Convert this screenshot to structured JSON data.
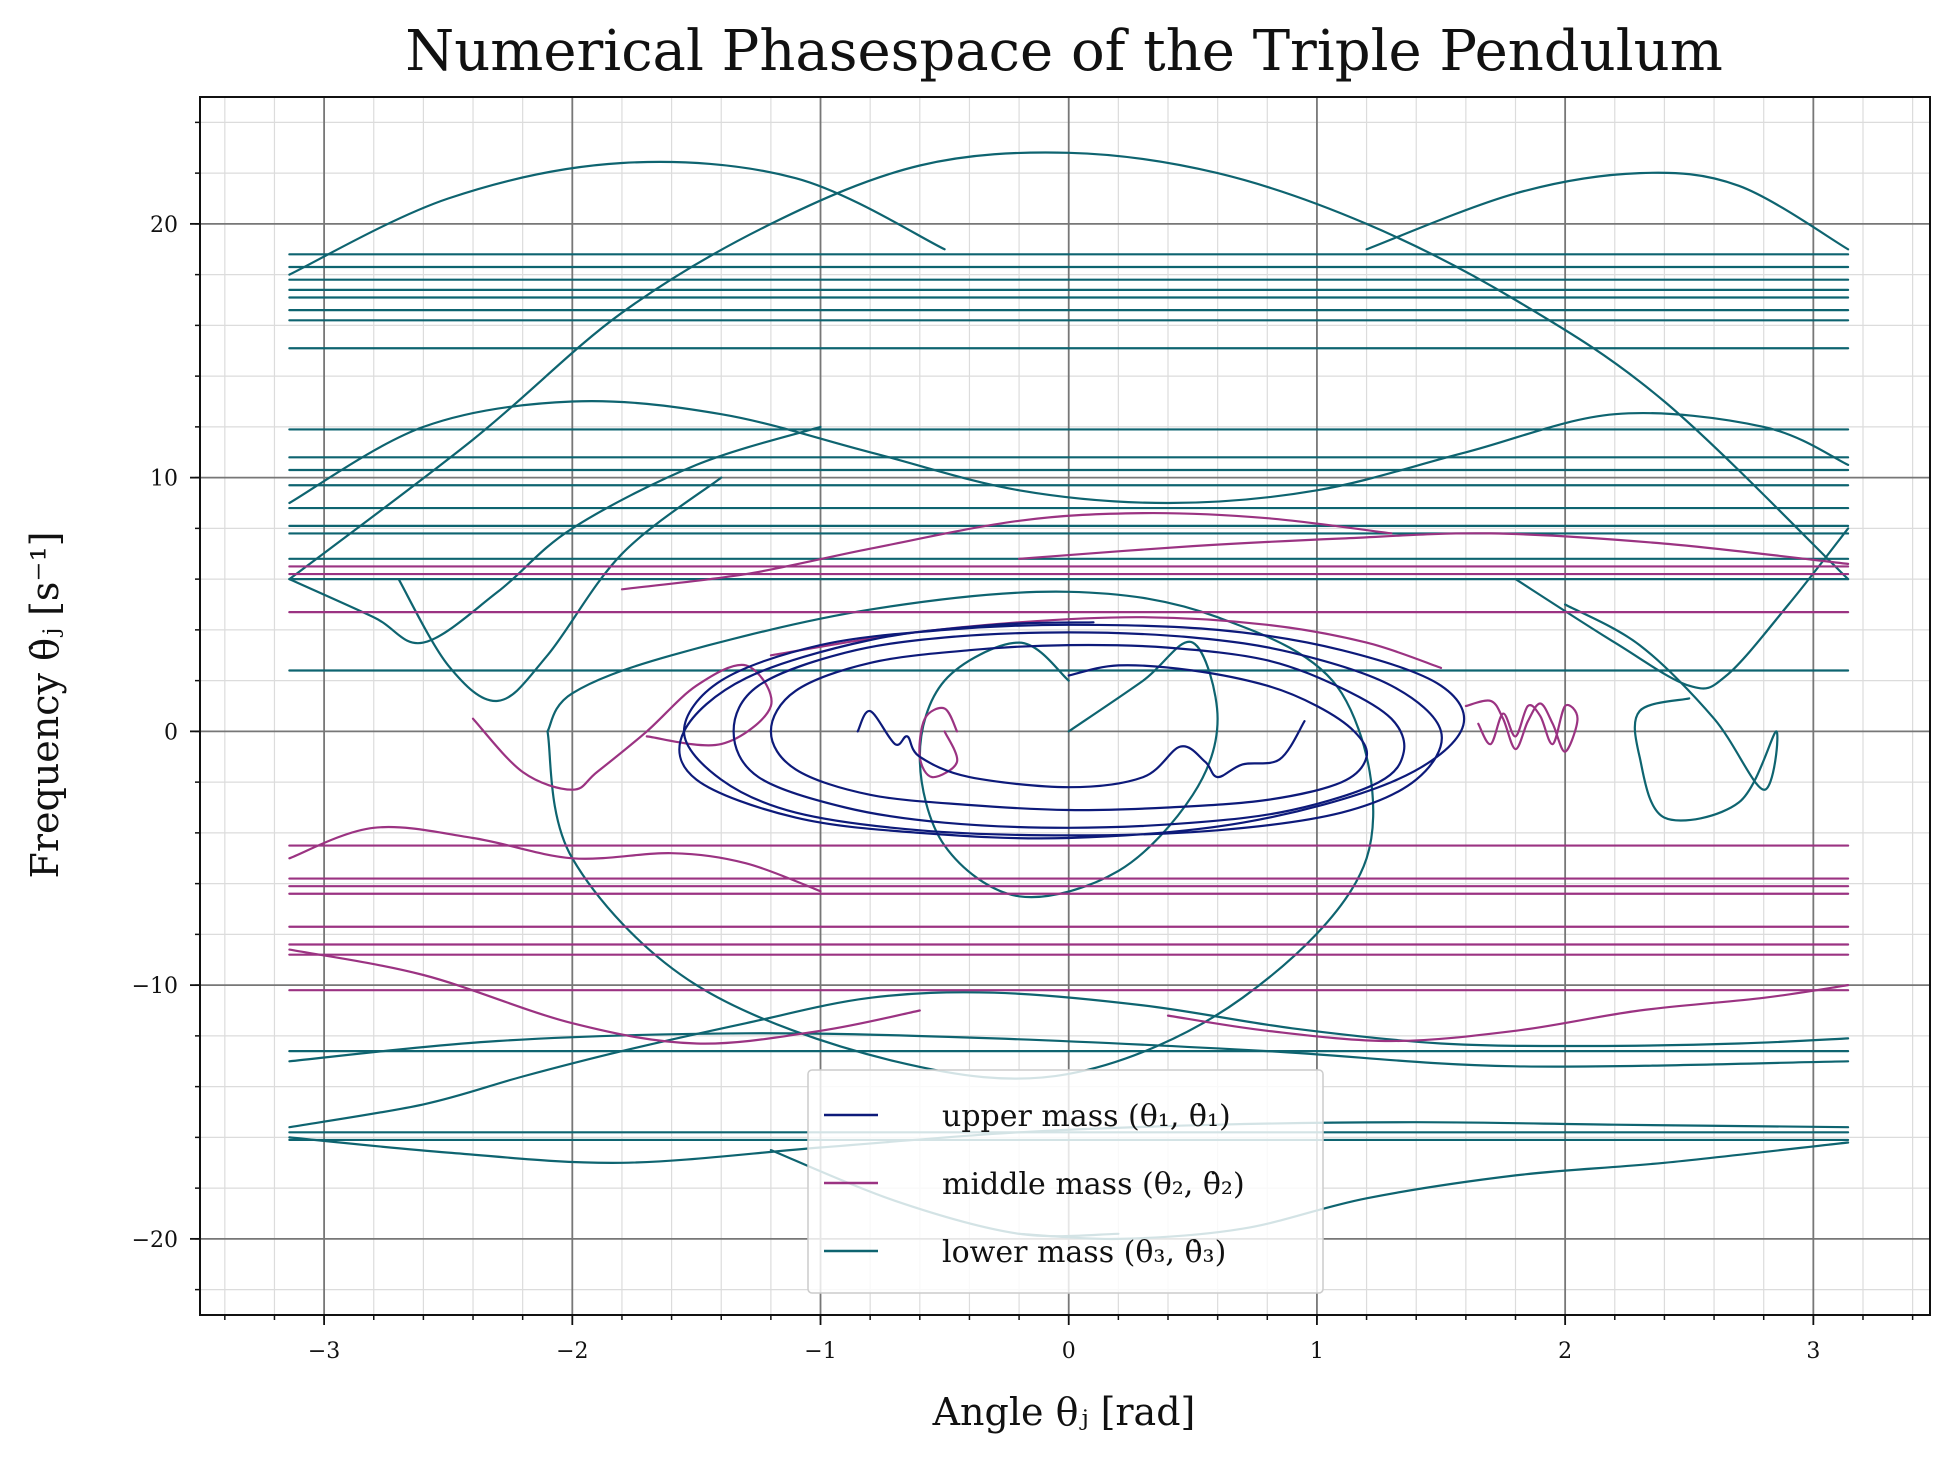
{
  "chart_data": {
    "type": "line",
    "title": "Numerical Phasespace of the Triple Pendulum",
    "xlabel": "Angle θⱼ [rad]",
    "ylabel": "Frequency θ̇ⱼ [s⁻¹]",
    "xlim": [
      -3.5,
      3.47
    ],
    "ylim": [
      -23,
      25
    ],
    "xticks": [
      -3,
      -2,
      -1,
      0,
      1,
      2,
      3
    ],
    "xtick_labels": [
      "−3",
      "−2",
      "−1",
      "0",
      "1",
      "2",
      "3"
    ],
    "yticks": [
      -20,
      -10,
      0,
      10,
      20
    ],
    "ytick_labels": [
      "−20",
      "−10",
      "0",
      "10",
      "20"
    ],
    "grid": true,
    "legend_position": "bottom-center",
    "series": [
      {
        "name": "upper mass (θ₁, θ̇₁)",
        "color": "#0d1a7a",
        "segments": [
          {
            "x": [
              0.0,
              0.2,
              0.5,
              0.8,
              1.0,
              1.15,
              1.2,
              1.1,
              0.8,
              0.4,
              0.0,
              -0.4,
              -0.8,
              -1.1,
              -1.2,
              -1.1,
              -0.8,
              -0.4,
              0.0,
              0.4,
              0.8,
              1.1,
              1.3,
              1.35,
              1.25,
              0.9,
              0.5,
              0.0,
              -0.5,
              -0.9,
              -1.25,
              -1.35,
              -1.25,
              -0.9,
              -0.5,
              0.0,
              0.5,
              0.9,
              1.3,
              1.5,
              1.4,
              1.1,
              0.6,
              0.0,
              -0.6,
              -1.1,
              -1.4,
              -1.55,
              -1.4,
              -1.0,
              -0.5,
              0.0,
              0.6,
              1.1,
              1.5,
              1.58,
              1.3,
              0.7,
              0.0,
              -0.6,
              -1.1,
              -1.5,
              -1.55,
              -1.3,
              -0.8,
              -0.3,
              0.1
            ],
            "y": [
              2.2,
              2.6,
              2.4,
              1.8,
              1.0,
              0.0,
              -1.0,
              -2.0,
              -2.7,
              -3.0,
              -3.1,
              -2.9,
              -2.5,
              -1.5,
              0.0,
              1.6,
              2.7,
              3.2,
              3.4,
              3.3,
              2.8,
              1.7,
              0.5,
              -0.8,
              -2.0,
              -3.1,
              -3.6,
              -3.8,
              -3.6,
              -3.0,
              -1.8,
              0.0,
              1.8,
              3.1,
              3.7,
              3.9,
              3.7,
              3.1,
              1.8,
              0.0,
              -1.9,
              -3.2,
              -3.9,
              -4.1,
              -3.9,
              -3.2,
              -1.9,
              0.0,
              2.0,
              3.4,
              4.0,
              4.2,
              4.0,
              3.2,
              1.8,
              0.0,
              -2.0,
              -3.6,
              -4.2,
              -4.0,
              -3.4,
              -1.9,
              0.0,
              2.1,
              3.6,
              4.2,
              4.3
            ]
          },
          {
            "x": [
              -0.85,
              -0.8,
              -0.7,
              -0.65,
              -0.6,
              -0.4,
              0.0,
              0.3,
              0.45,
              0.55,
              0.6,
              0.7,
              0.85,
              0.95
            ],
            "y": [
              0.0,
              0.8,
              -0.5,
              -0.2,
              -1.0,
              -1.8,
              -2.2,
              -1.8,
              -0.6,
              -1.2,
              -1.8,
              -1.3,
              -1.1,
              0.4
            ]
          }
        ]
      },
      {
        "name": "middle mass (θ₂, θ̇₂)",
        "color": "#9b3382",
        "segments": [
          {
            "x": [
              -3.14,
              3.14
            ],
            "y": [
              6.5,
              6.5
            ]
          },
          {
            "x": [
              -3.14,
              3.14
            ],
            "y": [
              6.2,
              6.2
            ]
          },
          {
            "x": [
              -3.14,
              3.14
            ],
            "y": [
              4.7,
              4.7
            ]
          },
          {
            "x": [
              -3.14,
              3.14
            ],
            "y": [
              -4.5,
              -4.5
            ]
          },
          {
            "x": [
              -3.14,
              3.14
            ],
            "y": [
              -5.8,
              -5.8
            ]
          },
          {
            "x": [
              -3.14,
              3.14
            ],
            "y": [
              -6.1,
              -6.1
            ]
          },
          {
            "x": [
              -3.14,
              3.14
            ],
            "y": [
              -6.4,
              -6.4
            ]
          },
          {
            "x": [
              -3.14,
              3.14
            ],
            "y": [
              -7.7,
              -7.7
            ]
          },
          {
            "x": [
              -3.14,
              3.14
            ],
            "y": [
              -8.4,
              -8.4
            ]
          },
          {
            "x": [
              -3.14,
              3.14
            ],
            "y": [
              -8.8,
              -8.8
            ]
          },
          {
            "x": [
              -3.14,
              3.14
            ],
            "y": [
              -10.2,
              -10.2
            ]
          },
          {
            "x": [
              -3.14,
              -2.8,
              -2.4,
              -2.0,
              -1.6,
              -1.3,
              -1.0
            ],
            "y": [
              -5.0,
              -3.8,
              -4.2,
              -5.0,
              -4.8,
              -5.2,
              -6.3
            ]
          },
          {
            "x": [
              -3.14,
              -2.6,
              -2.0,
              -1.5,
              -1.0,
              -0.6
            ],
            "y": [
              -8.6,
              -9.6,
              -11.5,
              -12.3,
              -11.8,
              -11.0
            ]
          },
          {
            "x": [
              0.4,
              0.8,
              1.3,
              1.8,
              2.3,
              2.8,
              3.14
            ],
            "y": [
              -11.2,
              -11.8,
              -12.2,
              -11.8,
              -11.0,
              -10.5,
              -10.0
            ]
          },
          {
            "x": [
              -0.2,
              0.5,
              1.1,
              1.7,
              2.4,
              3.14
            ],
            "y": [
              6.8,
              7.3,
              7.6,
              7.8,
              7.4,
              6.6
            ]
          },
          {
            "x": [
              -1.8,
              -1.3,
              -0.8,
              -0.2,
              0.3,
              0.8,
              1.3
            ],
            "y": [
              5.6,
              6.2,
              7.2,
              8.3,
              8.6,
              8.4,
              7.8
            ]
          },
          {
            "x": [
              -2.4,
              -2.2,
              -2.0,
              -1.9,
              -1.7,
              -1.5,
              -1.3,
              -1.2,
              -1.4,
              -1.7
            ],
            "y": [
              0.5,
              -1.6,
              -2.3,
              -1.6,
              0.0,
              1.8,
              2.6,
              1.0,
              -0.5,
              -0.2
            ]
          },
          {
            "x": [
              -0.45,
              -0.5,
              -0.58,
              -0.6,
              -0.55,
              -0.45,
              -0.5
            ],
            "y": [
              0.0,
              0.9,
              0.5,
              -1.0,
              -1.8,
              -1.2,
              0.0
            ]
          },
          {
            "x": [
              1.6,
              1.7,
              1.75,
              1.8,
              1.85,
              1.9,
              1.95,
              2.0,
              2.05,
              2.0,
              1.95,
              1.9,
              1.85,
              1.8,
              1.75,
              1.7,
              1.65
            ],
            "y": [
              1.0,
              1.2,
              0.5,
              -0.7,
              0.4,
              1.1,
              0.3,
              -0.8,
              0.5,
              1.0,
              -0.5,
              0.6,
              1.0,
              -0.2,
              0.7,
              -0.5,
              0.3
            ]
          },
          {
            "x": [
              1.5,
              1.2,
              0.8,
              0.3,
              -0.2,
              -0.7,
              -1.2
            ],
            "y": [
              2.5,
              3.5,
              4.2,
              4.5,
              4.3,
              3.8,
              3.0
            ]
          }
        ]
      },
      {
        "name": "lower mass (θ₃, θ̇₃)",
        "color": "#0e6470",
        "segments": [
          {
            "x": [
              -3.14,
              3.14
            ],
            "y": [
              18.8,
              18.8
            ]
          },
          {
            "x": [
              -3.14,
              3.14
            ],
            "y": [
              18.3,
              18.3
            ]
          },
          {
            "x": [
              -3.14,
              3.14
            ],
            "y": [
              17.8,
              17.8
            ]
          },
          {
            "x": [
              -3.14,
              3.14
            ],
            "y": [
              17.4,
              17.4
            ]
          },
          {
            "x": [
              -3.14,
              3.14
            ],
            "y": [
              17.1,
              17.1
            ]
          },
          {
            "x": [
              -3.14,
              3.14
            ],
            "y": [
              16.6,
              16.6
            ]
          },
          {
            "x": [
              -3.14,
              3.14
            ],
            "y": [
              16.2,
              16.2
            ]
          },
          {
            "x": [
              -3.14,
              3.14
            ],
            "y": [
              15.1,
              15.1
            ]
          },
          {
            "x": [
              -3.14,
              3.14
            ],
            "y": [
              11.9,
              11.9
            ]
          },
          {
            "x": [
              -3.14,
              3.14
            ],
            "y": [
              10.8,
              10.8
            ]
          },
          {
            "x": [
              -3.14,
              3.14
            ],
            "y": [
              10.3,
              10.3
            ]
          },
          {
            "x": [
              -3.14,
              3.14
            ],
            "y": [
              9.7,
              9.7
            ]
          },
          {
            "x": [
              -3.14,
              3.14
            ],
            "y": [
              8.8,
              8.8
            ]
          },
          {
            "x": [
              -3.14,
              3.14
            ],
            "y": [
              8.1,
              8.1
            ]
          },
          {
            "x": [
              -3.14,
              3.14
            ],
            "y": [
              7.8,
              7.8
            ]
          },
          {
            "x": [
              -3.14,
              3.14
            ],
            "y": [
              6.8,
              6.8
            ]
          },
          {
            "x": [
              -3.14,
              3.14
            ],
            "y": [
              6.0,
              6.0
            ]
          },
          {
            "x": [
              -3.14,
              3.14
            ],
            "y": [
              2.4,
              2.4
            ]
          },
          {
            "x": [
              -3.14,
              3.14
            ],
            "y": [
              -12.6,
              -12.6
            ]
          },
          {
            "x": [
              -3.14,
              3.14
            ],
            "y": [
              -15.8,
              -15.8
            ]
          },
          {
            "x": [
              -3.14,
              3.14
            ],
            "y": [
              -16.1,
              -16.1
            ]
          },
          {
            "x": [
              -3.14,
              -2.6,
              -2.2,
              -1.8,
              -1.3,
              -0.8,
              -0.3,
              0.3,
              0.9,
              1.5,
              2.1,
              2.7,
              3.14
            ],
            "y": [
              -15.6,
              -14.7,
              -13.6,
              -12.6,
              -11.5,
              -10.5,
              -10.3,
              -10.8,
              -11.7,
              -12.3,
              -12.4,
              -12.3,
              -12.1
            ]
          },
          {
            "x": [
              -3.14,
              -2.5,
              -1.8,
              -1.0,
              -0.2,
              0.6,
              1.4,
              2.2,
              3.14
            ],
            "y": [
              -16.0,
              -16.6,
              -17.0,
              -16.4,
              -15.8,
              -15.5,
              -15.4,
              -15.5,
              -15.6
            ]
          },
          {
            "x": [
              -3.14,
              -2.3,
              -1.3,
              -0.3,
              0.8,
              1.8,
              3.14
            ],
            "y": [
              -13.0,
              -12.2,
              -11.9,
              -12.1,
              -12.6,
              -13.2,
              -13.0
            ]
          },
          {
            "x": [
              -0.2,
              0.2,
              0.7,
              1.2,
              1.8,
              2.4,
              3.14
            ],
            "y": [
              -19.8,
              -20.0,
              -19.6,
              -18.4,
              -17.5,
              -17.0,
              -16.2
            ]
          },
          {
            "x": [
              -1.2,
              -0.7,
              -0.2,
              0.2
            ],
            "y": [
              -16.5,
              -18.5,
              -19.8,
              -19.8
            ]
          },
          {
            "x": [
              -3.14,
              -2.4,
              -1.8,
              -1.2,
              -0.6,
              0.0,
              0.6,
              1.2,
              1.8,
              2.4,
              3.14
            ],
            "y": [
              6.0,
              11.5,
              16.5,
              20.0,
              22.3,
              22.8,
              22.0,
              20.0,
              17.0,
              13.0,
              6.0
            ]
          },
          {
            "x": [
              -3.14,
              -2.5,
              -1.8,
              -1.1,
              -0.5
            ],
            "y": [
              18.0,
              21.0,
              22.4,
              21.8,
              19.0
            ]
          },
          {
            "x": [
              1.2,
              1.8,
              2.3,
              2.7,
              3.14
            ],
            "y": [
              19.0,
              21.2,
              22.0,
              21.5,
              19.0
            ]
          },
          {
            "x": [
              -3.14,
              -2.6,
              -2.0,
              -1.4,
              -0.8,
              -0.2,
              0.4,
              1.0,
              1.6,
              2.2,
              2.8,
              3.14
            ],
            "y": [
              9.0,
              12.0,
              13.0,
              12.5,
              11.0,
              9.5,
              9.0,
              9.5,
              11.0,
              12.5,
              12.0,
              10.5
            ]
          },
          {
            "x": [
              -3.14,
              -2.8,
              -2.6,
              -2.3,
              -2.0,
              -1.5,
              -1.0
            ],
            "y": [
              6.0,
              4.5,
              3.5,
              5.5,
              8.0,
              10.5,
              12.0
            ]
          },
          {
            "x": [
              -2.7,
              -2.5,
              -2.3,
              -2.1,
              -1.8,
              -1.4
            ],
            "y": [
              6.0,
              2.6,
              1.2,
              3.0,
              7.0,
              10.0
            ]
          },
          {
            "x": [
              1.8,
              2.2,
              2.5,
              2.65,
              2.9,
              3.14
            ],
            "y": [
              6.0,
              3.5,
              1.8,
              2.2,
              5.0,
              8.0
            ]
          },
          {
            "x": [
              2.0,
              2.3,
              2.6,
              2.8,
              2.85,
              2.7,
              2.4,
              2.3,
              2.3,
              2.5
            ],
            "y": [
              5.0,
              3.4,
              0.5,
              -2.3,
              0.0,
              -2.8,
              -3.4,
              -1.0,
              0.8,
              1.3
            ]
          },
          {
            "x": [
              0.0,
              0.3,
              0.5,
              0.6,
              0.5,
              0.2,
              -0.2,
              -0.5,
              -0.6,
              -0.5,
              -0.2,
              0.0
            ],
            "y": [
              0.0,
              2.0,
              3.5,
              0.5,
              -2.5,
              -5.5,
              -6.5,
              -4.5,
              -1.0,
              2.0,
              3.5,
              2.0
            ]
          },
          {
            "x": [
              -2.1,
              -2.0,
              -1.5,
              -0.7,
              0.0,
              0.7,
              1.2,
              1.1,
              0.6,
              0.0,
              -0.8,
              -1.6,
              -2.0,
              -2.1
            ],
            "y": [
              0.0,
              -5.0,
              -10.0,
              -13.0,
              -13.5,
              -10.5,
              -5.0,
              1.5,
              4.5,
              5.5,
              4.8,
              3.0,
              1.5,
              0.0
            ]
          }
        ]
      }
    ]
  }
}
